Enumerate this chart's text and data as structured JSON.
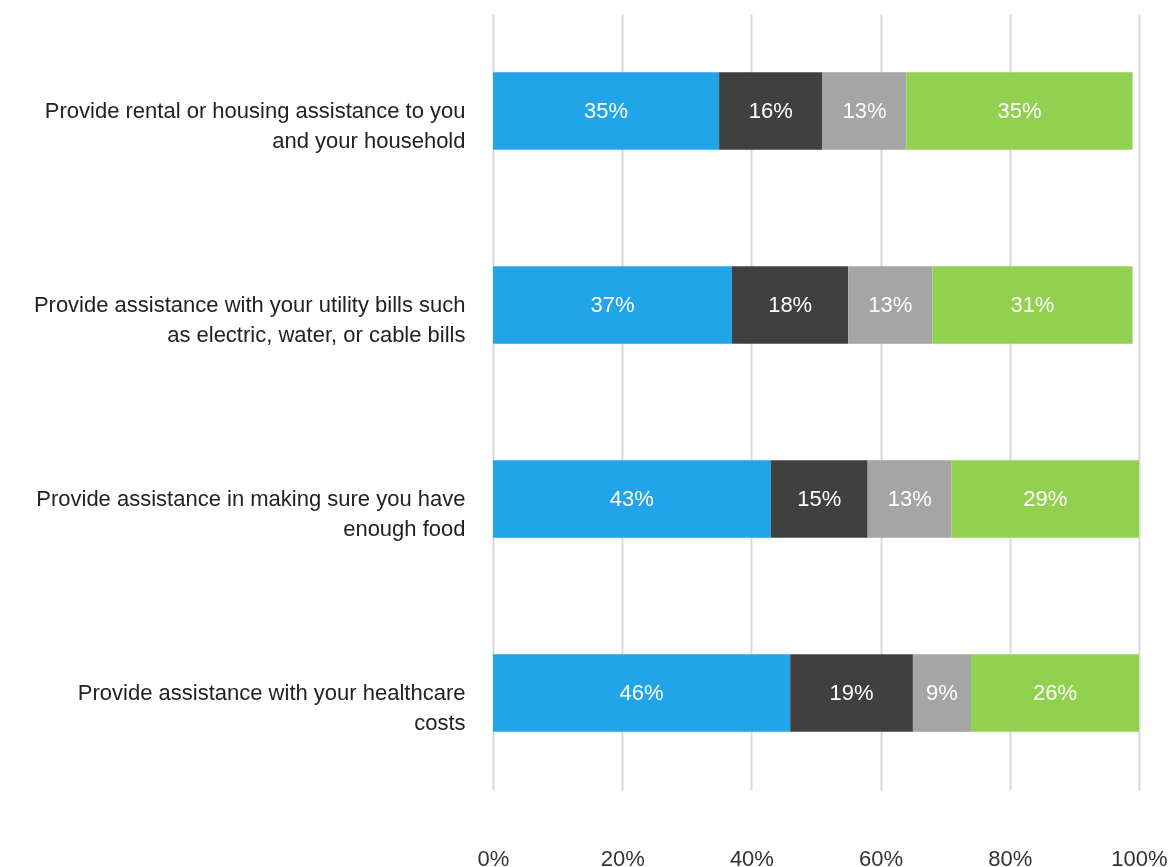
{
  "chart_data": {
    "type": "bar",
    "orientation": "horizontal",
    "stacked": true,
    "categories": [
      "Provide rental or housing assistance to you and your household",
      "Provide assistance with your utility bills such as electric, water, or cable bills",
      "Provide assistance in making sure you have enough food",
      "Provide assistance with your healthcare costs"
    ],
    "series": [
      {
        "color": "#22a5e8",
        "values": [
          35,
          37,
          43,
          46
        ],
        "value_labels": [
          "35%",
          "37%",
          "43%",
          "46%"
        ]
      },
      {
        "color": "#404040",
        "values": [
          16,
          18,
          15,
          19
        ],
        "value_labels": [
          "16%",
          "18%",
          "15%",
          "19%"
        ]
      },
      {
        "color": "#a5a5a5",
        "values": [
          13,
          13,
          13,
          9
        ],
        "value_labels": [
          "13%",
          "13%",
          "13%",
          "9%"
        ]
      },
      {
        "color": "#92d050",
        "values": [
          35,
          31,
          29,
          26
        ],
        "value_labels": [
          "35%",
          "31%",
          "29%",
          "26%"
        ]
      }
    ],
    "xlim": [
      0,
      100
    ],
    "xticks": [
      {
        "value": 0,
        "label": "0%"
      },
      {
        "value": 20,
        "label": "20%"
      },
      {
        "value": 40,
        "label": "40%"
      },
      {
        "value": 60,
        "label": "60%"
      },
      {
        "value": 80,
        "label": "80%"
      },
      {
        "value": 100,
        "label": "100%"
      }
    ],
    "grid": "x"
  }
}
